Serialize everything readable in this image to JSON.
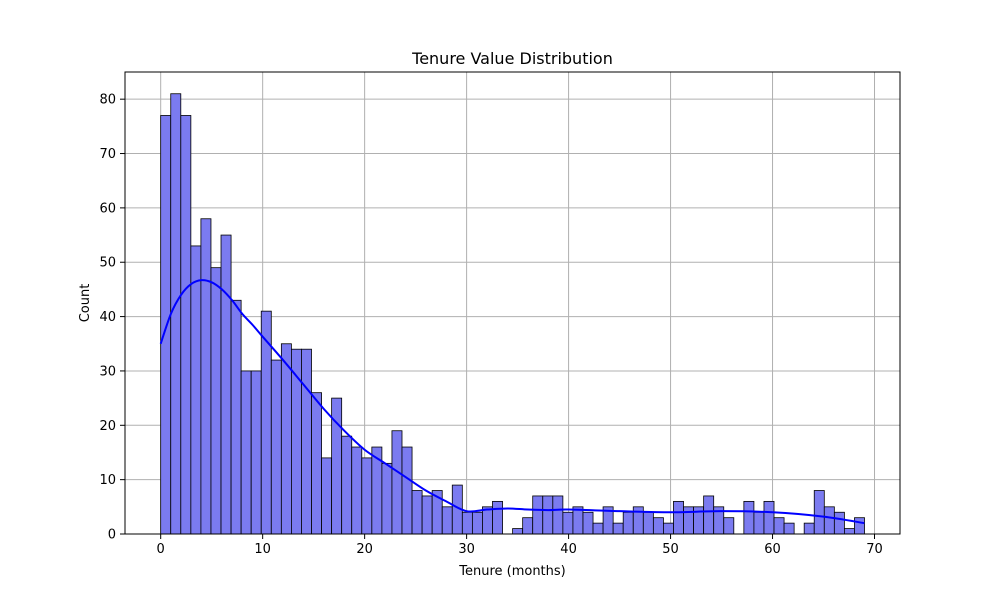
{
  "chart_data": {
    "type": "bar",
    "title": "Tenure Value Distribution",
    "xlabel": "Tenure (months)",
    "ylabel": "Count",
    "xlim": [
      -3.5,
      72.5
    ],
    "ylim": [
      0,
      85
    ],
    "xticks": [
      0,
      10,
      20,
      30,
      40,
      50,
      60,
      70
    ],
    "yticks": [
      0,
      10,
      20,
      30,
      40,
      50,
      60,
      70,
      80
    ],
    "grid": true,
    "bar_color": "#7b7bf0",
    "bar_edge_color": "#000000",
    "kde_color": "#0000ff",
    "bins": {
      "start": 0,
      "width": 0.986
    },
    "values": [
      77,
      81,
      77,
      53,
      58,
      49,
      55,
      43,
      30,
      30,
      41,
      32,
      35,
      34,
      34,
      26,
      14,
      25,
      18,
      16,
      14,
      16,
      13,
      19,
      16,
      8,
      7,
      8,
      5,
      9,
      4,
      4,
      5,
      6,
      0,
      1,
      3,
      7,
      7,
      7,
      4,
      5,
      4,
      2,
      5,
      2,
      4,
      5,
      4,
      3,
      2,
      6,
      5,
      5,
      7,
      5,
      3,
      0,
      6,
      4,
      6,
      3,
      2,
      0,
      2,
      8,
      5,
      4,
      1,
      3
    ],
    "kde": {
      "x": [
        0,
        1,
        2,
        3,
        4,
        5,
        6,
        7,
        8,
        9,
        10,
        12,
        14,
        16,
        18,
        20,
        22,
        24,
        26,
        28,
        30,
        32,
        34,
        36,
        38,
        40,
        45,
        50,
        55,
        60,
        65,
        69
      ],
      "y": [
        35,
        40.5,
        44,
        46,
        46.7,
        46.3,
        45,
        43,
        40.5,
        38.5,
        36.3,
        32,
        27.5,
        23,
        19,
        15.5,
        13,
        10.5,
        8,
        6,
        4.2,
        4.5,
        4.7,
        4.5,
        4.4,
        4.5,
        4.2,
        4,
        4.2,
        4,
        3.2,
        2
      ]
    }
  }
}
